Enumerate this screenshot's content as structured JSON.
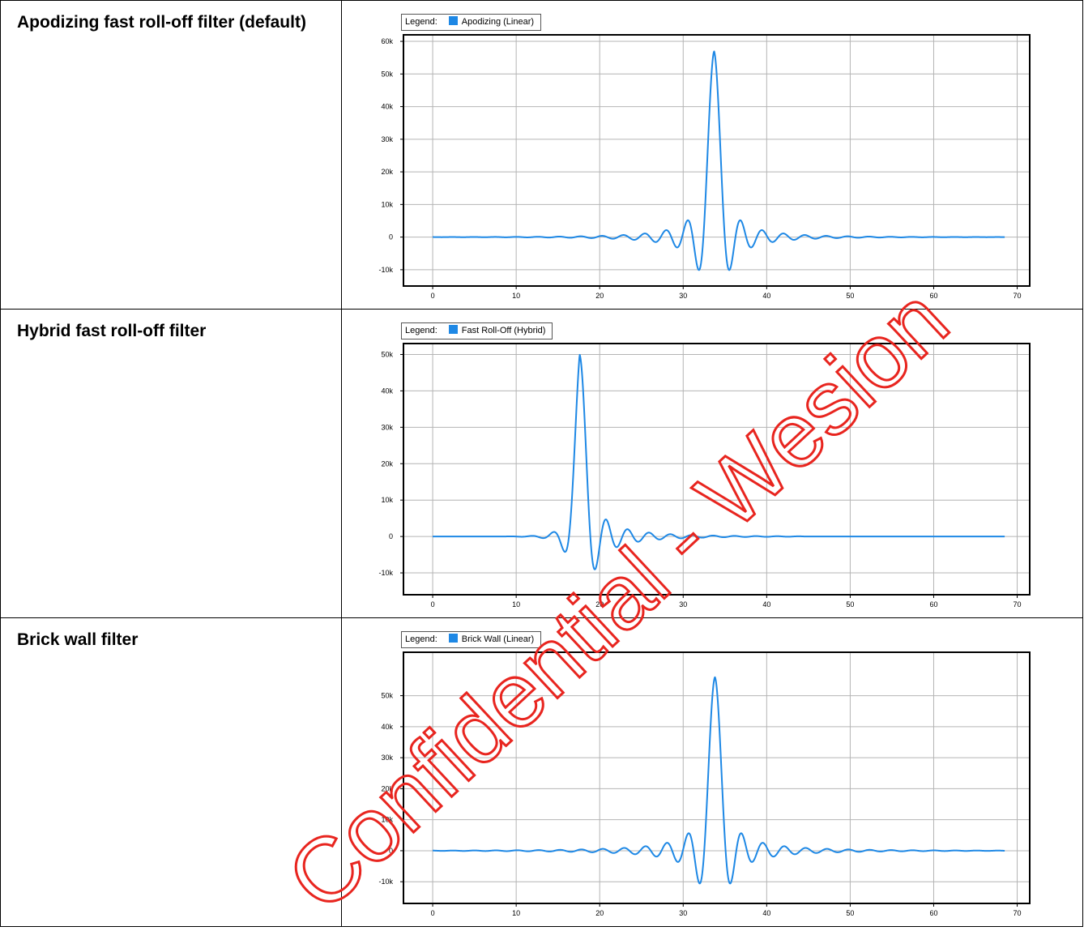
{
  "rows": [
    {
      "label": "Apodizing fast roll-off filter (default)"
    },
    {
      "label": "Hybrid fast roll-off filter"
    },
    {
      "label": "Brick wall filter"
    }
  ],
  "legend_prefix": "Legend:",
  "watermark": "Confidential - Wesion",
  "colors": {
    "series": "#1e88e5",
    "watermark": "#e8251f",
    "grid": "#b4b4b4"
  },
  "chart_data": [
    {
      "type": "line",
      "series": [
        {
          "name": "Apodizing (Linear)",
          "center": 33.7,
          "peak": 57000,
          "start": 0,
          "end": 68.5
        }
      ],
      "xlim": [
        -3.5,
        71.5
      ],
      "ylim": [
        -15000,
        62000
      ],
      "xticks": [
        "0",
        "10",
        "20",
        "30",
        "40",
        "50",
        "60",
        "70"
      ],
      "yticks": [
        "60k",
        "50k",
        "40k",
        "30k",
        "20k",
        "10k",
        "0",
        "-10k"
      ],
      "ytick_values": [
        60000,
        50000,
        40000,
        30000,
        20000,
        10000,
        0,
        -10000
      ]
    },
    {
      "type": "line",
      "series": [
        {
          "name": "Fast Roll-Off (Hybrid)",
          "center": 17.6,
          "peak": 50000,
          "start": 0,
          "end": 68.5
        }
      ],
      "xlim": [
        -3.5,
        71.5
      ],
      "ylim": [
        -16000,
        53000
      ],
      "xticks": [
        "0",
        "10",
        "20",
        "30",
        "40",
        "50",
        "60",
        "70"
      ],
      "yticks": [
        "50k",
        "40k",
        "30k",
        "20k",
        "10k",
        "0",
        "-10k"
      ],
      "ytick_values": [
        50000,
        40000,
        30000,
        20000,
        10000,
        0,
        -10000
      ]
    },
    {
      "type": "line",
      "series": [
        {
          "name": "Brick Wall (Linear)",
          "center": 33.8,
          "peak": 56000,
          "start": 0,
          "end": 68.5
        }
      ],
      "xlim": [
        -3.5,
        71.5
      ],
      "ylim": [
        -17000,
        64000
      ],
      "xticks": [
        "0",
        "10",
        "20",
        "30",
        "40",
        "50",
        "60",
        "70"
      ],
      "yticks": [
        "50k",
        "40k",
        "30k",
        "20k",
        "10k",
        "0",
        "-10k"
      ],
      "ytick_values": [
        50000,
        40000,
        30000,
        20000,
        10000,
        0,
        -10000
      ]
    }
  ]
}
